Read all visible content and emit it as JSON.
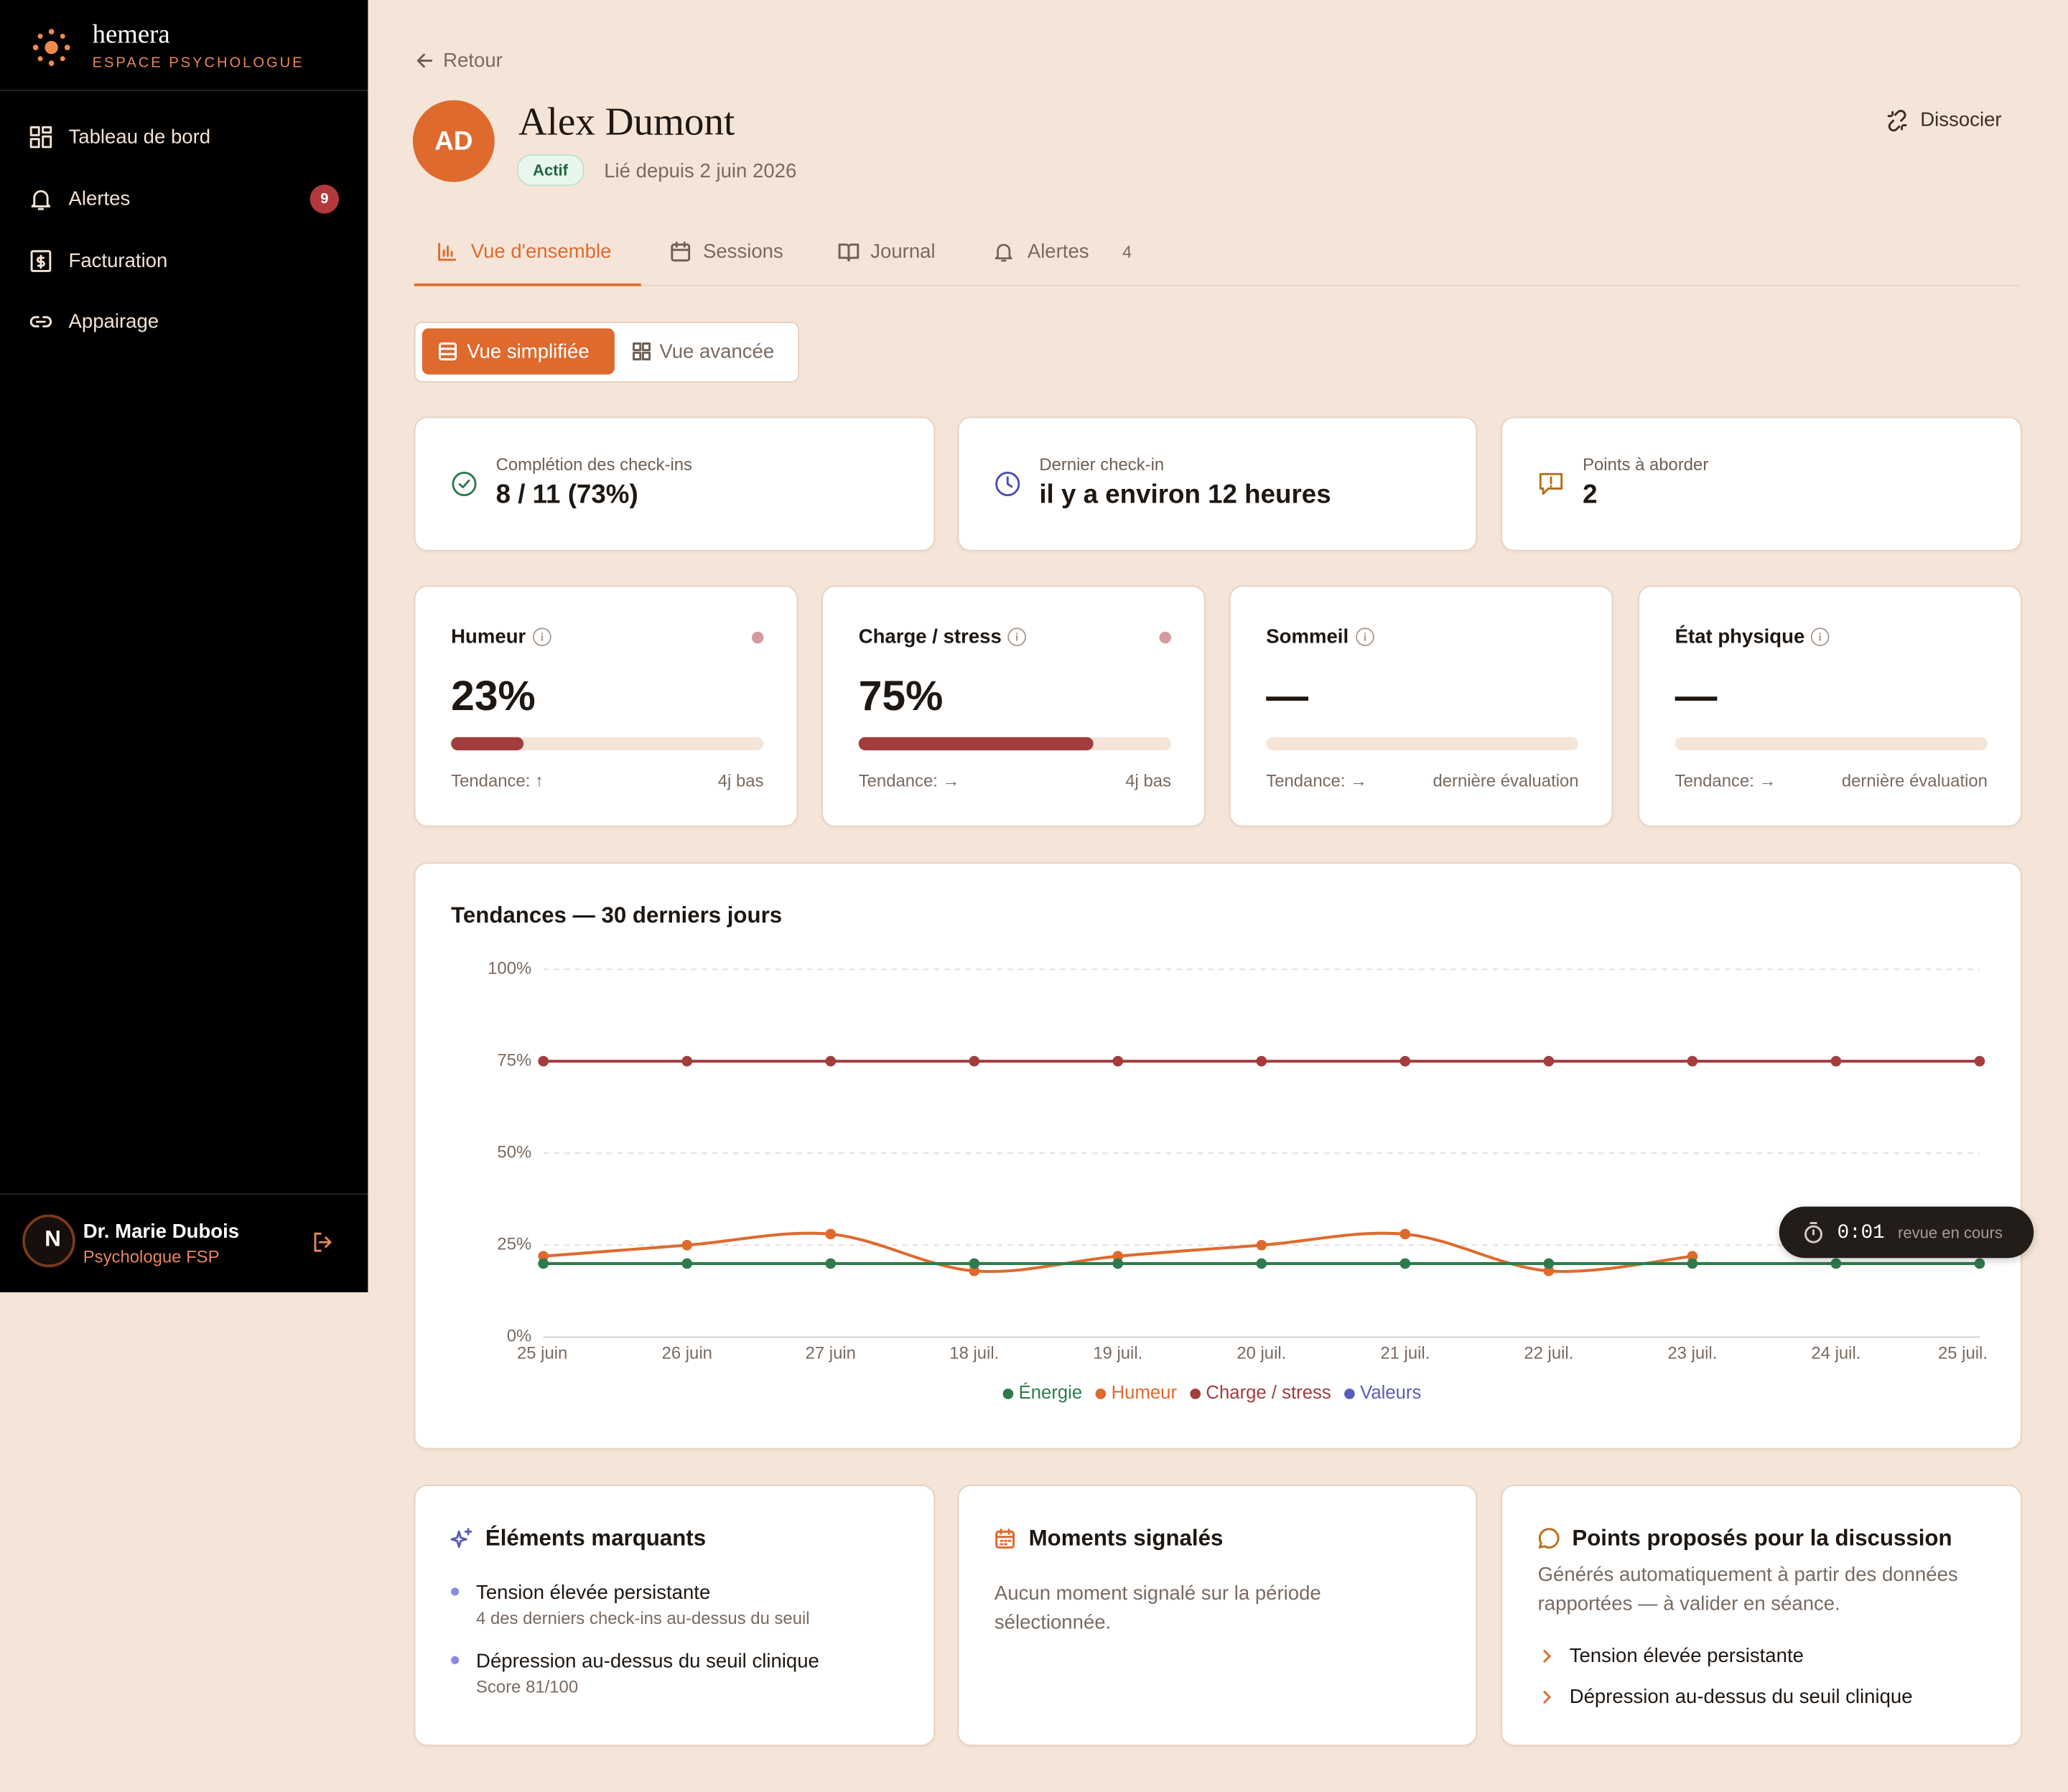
{
  "sidebar": {
    "brand": "hemera",
    "subtitle": "ESPACE PSYCHOLOGUE",
    "nav": [
      {
        "label": "Tableau de bord"
      },
      {
        "label": "Alertes",
        "badge": 9
      },
      {
        "label": "Facturation"
      },
      {
        "label": "Appairage"
      }
    ],
    "user": {
      "initial": "N",
      "name": "Dr. Marie Dubois",
      "role": "Psychologue FSP"
    }
  },
  "header": {
    "back": "Retour",
    "initials": "AD",
    "name": "Alex Dumont",
    "status": "Actif",
    "linked": "Lié depuis 2 juin 2026",
    "action": "Dissocier"
  },
  "tabs": [
    {
      "label": "Vue d'ensemble"
    },
    {
      "label": "Sessions"
    },
    {
      "label": "Journal"
    },
    {
      "label": "Alertes",
      "count": 4
    }
  ],
  "view_toggle": [
    "Vue simplifiée",
    "Vue avancée"
  ],
  "stats": [
    {
      "label": "Complétion des check-ins",
      "value": "8 / 11 (73%)"
    },
    {
      "label": "Dernier check-in",
      "value": "il y a environ 12 heures"
    },
    {
      "label": "Points à aborder",
      "value": 2
    }
  ],
  "metrics": [
    {
      "title": "Humeur",
      "value": 23,
      "value_label": "23%",
      "trend": "Tendance: ↑",
      "note": "4j bas"
    },
    {
      "title": "Charge / stress",
      "value": 75,
      "value_label": "75%",
      "trend": "Tendance: →",
      "note": "4j bas"
    },
    {
      "title": "Sommeil",
      "value": null,
      "value_label": "—",
      "trend": "Tendance: →",
      "note": "dernière évaluation"
    },
    {
      "title": "État physique",
      "value": null,
      "value_label": "—",
      "trend": "Tendance: →",
      "note": "dernière évaluation"
    }
  ],
  "chart_data": {
    "type": "line",
    "title": "Tendances — 30 derniers jours",
    "categories": [
      "25 juin",
      "26 juin",
      "27 juin",
      "18 juil.",
      "19 juil.",
      "20 juil.",
      "21 juil.",
      "22 juil.",
      "23 juil.",
      "24 juil.",
      "25 juil."
    ],
    "series": [
      {
        "name": "Énergie",
        "color": "#2f7a4c",
        "values": [
          20,
          20,
          20,
          20,
          20,
          20,
          20,
          20,
          20,
          20,
          20
        ]
      },
      {
        "name": "Humeur",
        "color": "#df6a2e",
        "values": [
          22,
          25,
          28,
          18,
          22,
          25,
          28,
          18,
          22,
          null,
          null
        ]
      },
      {
        "name": "Charge / stress",
        "color": "#a33c3e",
        "values": [
          75,
          75,
          75,
          75,
          75,
          75,
          75,
          75,
          75,
          75,
          75
        ]
      },
      {
        "name": "Valeurs",
        "color": "#5a5cb8",
        "values": [
          null,
          null,
          null,
          null,
          null,
          null,
          null,
          null,
          null,
          null,
          null
        ]
      }
    ],
    "ylim": [
      0,
      100
    ],
    "yticks": [
      {
        "value": 0,
        "label": "0%"
      },
      {
        "value": 25,
        "label": "25%"
      },
      {
        "value": 50,
        "label": "50%"
      },
      {
        "value": 75,
        "label": "75%"
      },
      {
        "value": 100,
        "label": "100%"
      }
    ],
    "grid": true,
    "legend": "bottom"
  },
  "timer": {
    "time": "0:01",
    "label": "revue en cours"
  },
  "highlights": {
    "title": "Éléments marquants",
    "items": [
      {
        "title": "Tension élevée persistante",
        "detail": "4 des derniers check-ins au-dessus du seuil"
      },
      {
        "title": "Dépression au-dessus du seuil clinique",
        "detail": "Score 81/100"
      }
    ]
  },
  "moments": {
    "title": "Moments signalés",
    "text": "Aucun moment signalé sur la période sélectionnée."
  },
  "discussion": {
    "title": "Points proposés pour la discussion",
    "text": "Générés automatiquement à partir des données rapportées — à valider en séance.",
    "items": [
      "Tension élevée persistante",
      "Dépression au-dessus du seuil clinique"
    ]
  }
}
